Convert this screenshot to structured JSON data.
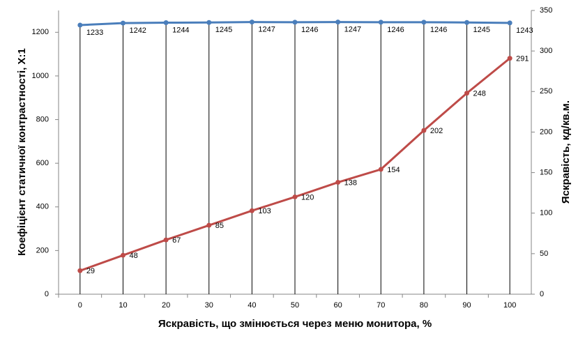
{
  "chart_data": {
    "type": "line",
    "x_label": "Яскравість, що змінюється через меню монитора, %",
    "y_label": "Коефіцієнт статичної контрастності, X:1",
    "y2_label": "Яскравість, кд/кв.м.",
    "categories": [
      "0",
      "10",
      "20",
      "30",
      "40",
      "50",
      "60",
      "70",
      "80",
      "90",
      "100"
    ],
    "series": [
      {
        "name": "Коефіцієнт статичної контрастності",
        "color": "#4a7ebb",
        "values": [
          1233,
          1242,
          1244,
          1245,
          1247,
          1246,
          1247,
          1246,
          1246,
          1245,
          1243
        ]
      },
      {
        "name": "Яскравість",
        "color": "#be4b48",
        "axis": "y2",
        "values": [
          29,
          48,
          67,
          85,
          103,
          120,
          138,
          154,
          202,
          248,
          291
        ]
      }
    ],
    "ylim": [
      0,
      1300
    ],
    "yticks": [
      0,
      200,
      400,
      600,
      800,
      1000,
      1200
    ],
    "y2lim": [
      0,
      350
    ],
    "y2ticks": [
      0,
      50,
      100,
      150,
      200,
      250,
      300,
      350
    ],
    "drop_lines": true
  }
}
